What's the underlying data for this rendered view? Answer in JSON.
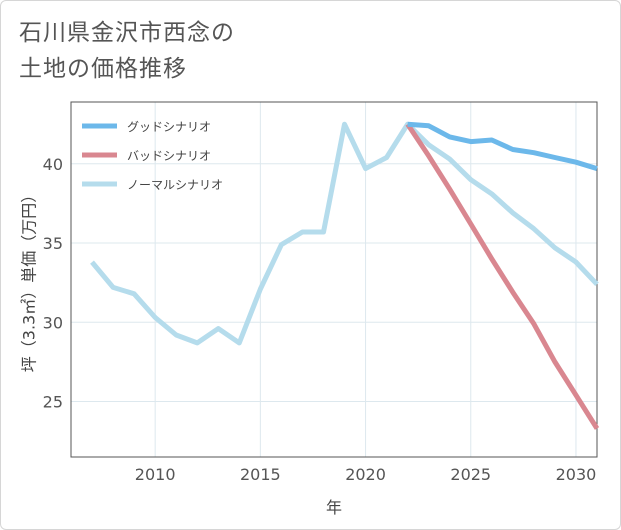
{
  "title_lines": [
    "石川県金沢市西念の",
    "土地の価格推移"
  ],
  "chart_data": {
    "type": "line",
    "xlabel": "年",
    "ylabel": "坪（3.3㎡）単価（万円）",
    "xlim": [
      2006,
      2031
    ],
    "ylim": [
      21.5,
      43.9
    ],
    "xticks": [
      2010,
      2015,
      2020,
      2025,
      2030
    ],
    "yticks": [
      25,
      30,
      35,
      40
    ],
    "grid": true,
    "legend_position": "top-left",
    "series": [
      {
        "name": "グッドシナリオ",
        "color": "#6cb8ea",
        "x": [
          2022,
          2023,
          2024,
          2025,
          2026,
          2027,
          2028,
          2029,
          2030,
          2031
        ],
        "y": [
          42.5,
          42.4,
          41.7,
          41.4,
          41.5,
          40.9,
          40.7,
          40.4,
          40.1,
          39.7
        ]
      },
      {
        "name": "バッドシナリオ",
        "color": "#d98790",
        "x": [
          2022,
          2023,
          2024,
          2025,
          2026,
          2027,
          2028,
          2029,
          2030,
          2031
        ],
        "y": [
          42.5,
          40.5,
          38.4,
          36.2,
          34.0,
          31.9,
          29.9,
          27.5,
          25.4,
          23.3
        ]
      },
      {
        "name": "ノーマルシナリオ",
        "color": "#b5dcec",
        "x": [
          2007,
          2008,
          2009,
          2010,
          2011,
          2012,
          2013,
          2014,
          2015,
          2016,
          2017,
          2018,
          2019,
          2020,
          2021,
          2022,
          2023,
          2024,
          2025,
          2026,
          2027,
          2028,
          2029,
          2030,
          2031
        ],
        "y": [
          33.8,
          32.2,
          31.8,
          30.3,
          29.2,
          28.7,
          29.6,
          28.7,
          32.1,
          34.9,
          35.7,
          35.7,
          42.5,
          39.7,
          40.4,
          42.5,
          41.2,
          40.3,
          39.0,
          38.1,
          36.9,
          35.9,
          34.7,
          33.8,
          32.4
        ]
      }
    ]
  }
}
